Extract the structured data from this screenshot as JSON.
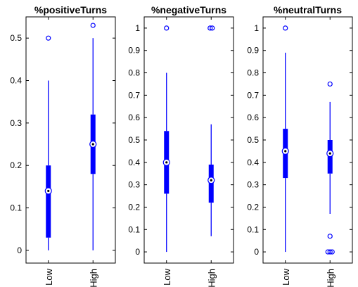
{
  "chart_data": [
    {
      "type": "box",
      "title": "%positiveTurns",
      "categories": [
        "Low",
        "High"
      ],
      "ylim": [
        -0.03,
        0.55
      ],
      "yticks": [
        0,
        0.1,
        0.2,
        0.3,
        0.4,
        0.5
      ],
      "ytick_labels": [
        "0",
        "0.1",
        "0.2",
        "0.3",
        "0.4",
        "0.5"
      ],
      "grid": false,
      "color": "#0000ff",
      "boxes": [
        {
          "category": "Low",
          "whisker_low": 0,
          "q1": 0.03,
          "median": 0.14,
          "q3": 0.2,
          "whisker_high": 0.4,
          "outliers": [
            0.5
          ]
        },
        {
          "category": "High",
          "whisker_low": 0,
          "q1": 0.18,
          "median": 0.25,
          "q3": 0.32,
          "whisker_high": 0.5,
          "outliers": [
            0.53
          ]
        }
      ]
    },
    {
      "type": "box",
      "title": "%negativeTurns",
      "categories": [
        "Low",
        "High"
      ],
      "ylim": [
        -0.05,
        1.05
      ],
      "yticks": [
        0,
        0.1,
        0.2,
        0.3,
        0.4,
        0.5,
        0.6,
        0.7,
        0.8,
        0.9,
        1
      ],
      "ytick_labels": [
        "0",
        "0.1",
        "0.2",
        "0.3",
        "0.4",
        "0.5",
        "0.6",
        "0.7",
        "0.8",
        "0.9",
        "1"
      ],
      "grid": false,
      "color": "#0000ff",
      "boxes": [
        {
          "category": "Low",
          "whisker_low": 0,
          "q1": 0.26,
          "median": 0.4,
          "q3": 0.54,
          "whisker_high": 0.8,
          "outliers": [
            1
          ]
        },
        {
          "category": "High",
          "whisker_low": 0.07,
          "q1": 0.22,
          "median": 0.32,
          "q3": 0.39,
          "whisker_high": 0.57,
          "outliers": [
            1,
            1
          ]
        }
      ]
    },
    {
      "type": "box",
      "title": "%neutralTurns",
      "categories": [
        "Low",
        "High"
      ],
      "ylim": [
        -0.05,
        1.05
      ],
      "yticks": [
        0,
        0.1,
        0.2,
        0.3,
        0.4,
        0.5,
        0.6,
        0.7,
        0.8,
        0.9,
        1
      ],
      "ytick_labels": [
        "0",
        "0.1",
        "0.2",
        "0.3",
        "0.4",
        "0.5",
        "0.6",
        "0.7",
        "0.8",
        "0.9",
        "1"
      ],
      "grid": false,
      "color": "#0000ff",
      "boxes": [
        {
          "category": "Low",
          "whisker_low": 0,
          "q1": 0.33,
          "median": 0.45,
          "q3": 0.55,
          "whisker_high": 0.89,
          "outliers": [
            1
          ]
        },
        {
          "category": "High",
          "whisker_low": 0.17,
          "q1": 0.35,
          "median": 0.44,
          "q3": 0.5,
          "whisker_high": 0.67,
          "outliers": [
            0.75,
            0.07,
            0,
            0,
            0
          ]
        }
      ]
    }
  ]
}
